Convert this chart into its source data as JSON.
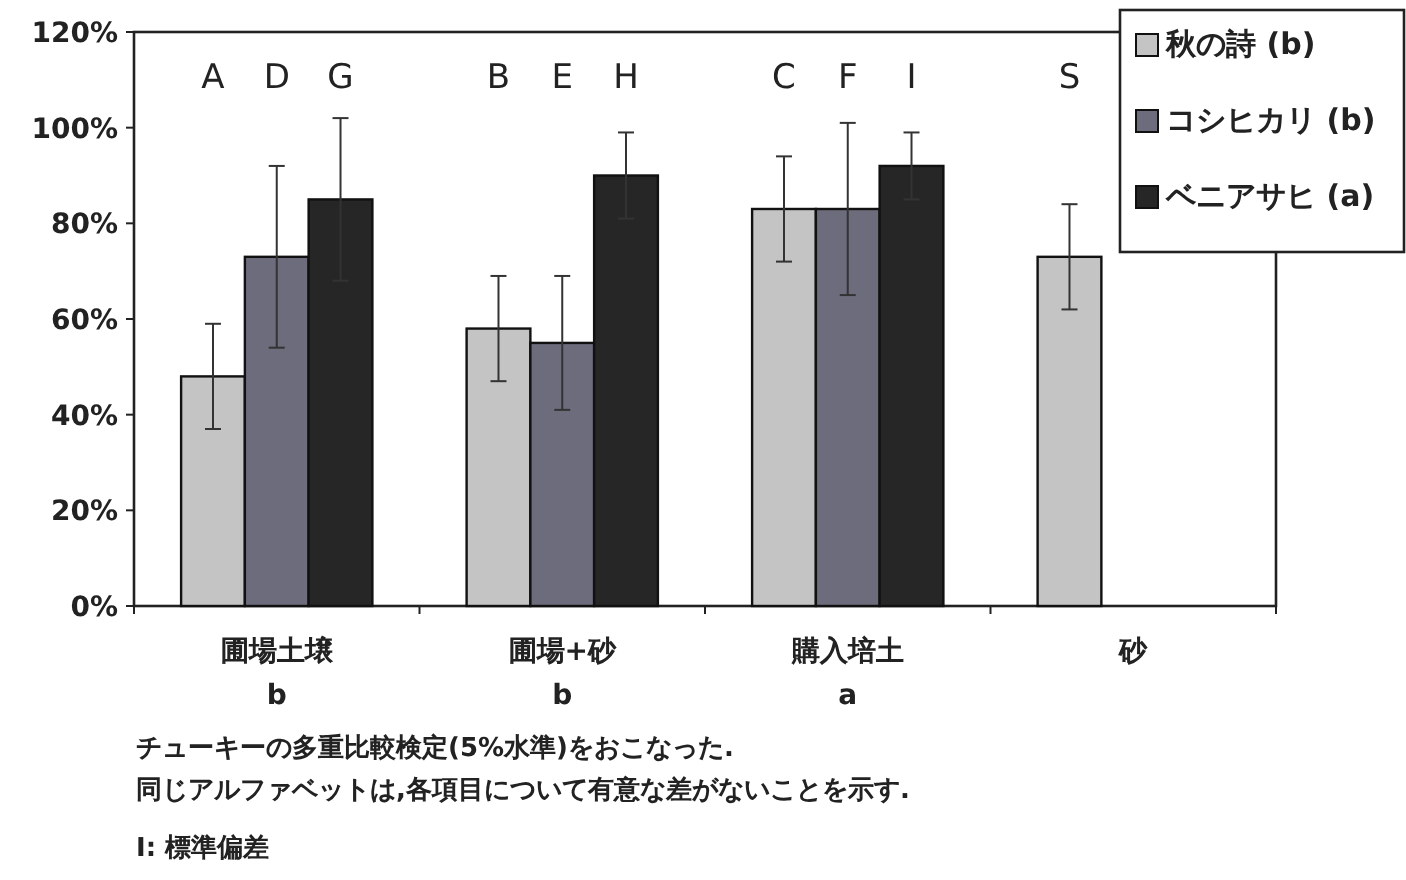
{
  "chart_data": {
    "type": "bar",
    "categories": [
      "圃場土壌\nb",
      "圃場+砂\nb",
      "購入培土\na",
      "砂"
    ],
    "series": [
      {
        "name": "秋の詩 (b)",
        "color": "#c4c4c4",
        "values": [
          48,
          58,
          83,
          73
        ],
        "errors": [
          11,
          11,
          11,
          11
        ]
      },
      {
        "name": "コシヒカリ (b)",
        "color": "#6c6c7c",
        "values": [
          73,
          55,
          83,
          null
        ],
        "errors": [
          19,
          14,
          18,
          null
        ]
      },
      {
        "name": "ベニアサヒ (a)",
        "color": "#262626",
        "values": [
          85,
          90,
          92,
          null
        ],
        "errors": [
          17,
          9,
          7,
          null
        ]
      }
    ],
    "ylim": [
      0,
      120
    ],
    "yticks": [
      {
        "value": 0,
        "label": "0%"
      },
      {
        "value": 20,
        "label": "20%"
      },
      {
        "value": 40,
        "label": "40%"
      },
      {
        "value": 60,
        "label": "60%"
      },
      {
        "value": 80,
        "label": "80%"
      },
      {
        "value": 100,
        "label": "100%"
      },
      {
        "value": 120,
        "label": "120%"
      }
    ],
    "legend": "top right",
    "grid": false,
    "annotations": [
      "A",
      "D",
      "G",
      "B",
      "E",
      "H",
      "C",
      "F",
      "I",
      "S",
      "チューキーの多重比較検定(5%水準)をおこなった.",
      "同じアルファベットは,各項目について有意な差がないことを示す.",
      "I: 標準偏差"
    ]
  }
}
